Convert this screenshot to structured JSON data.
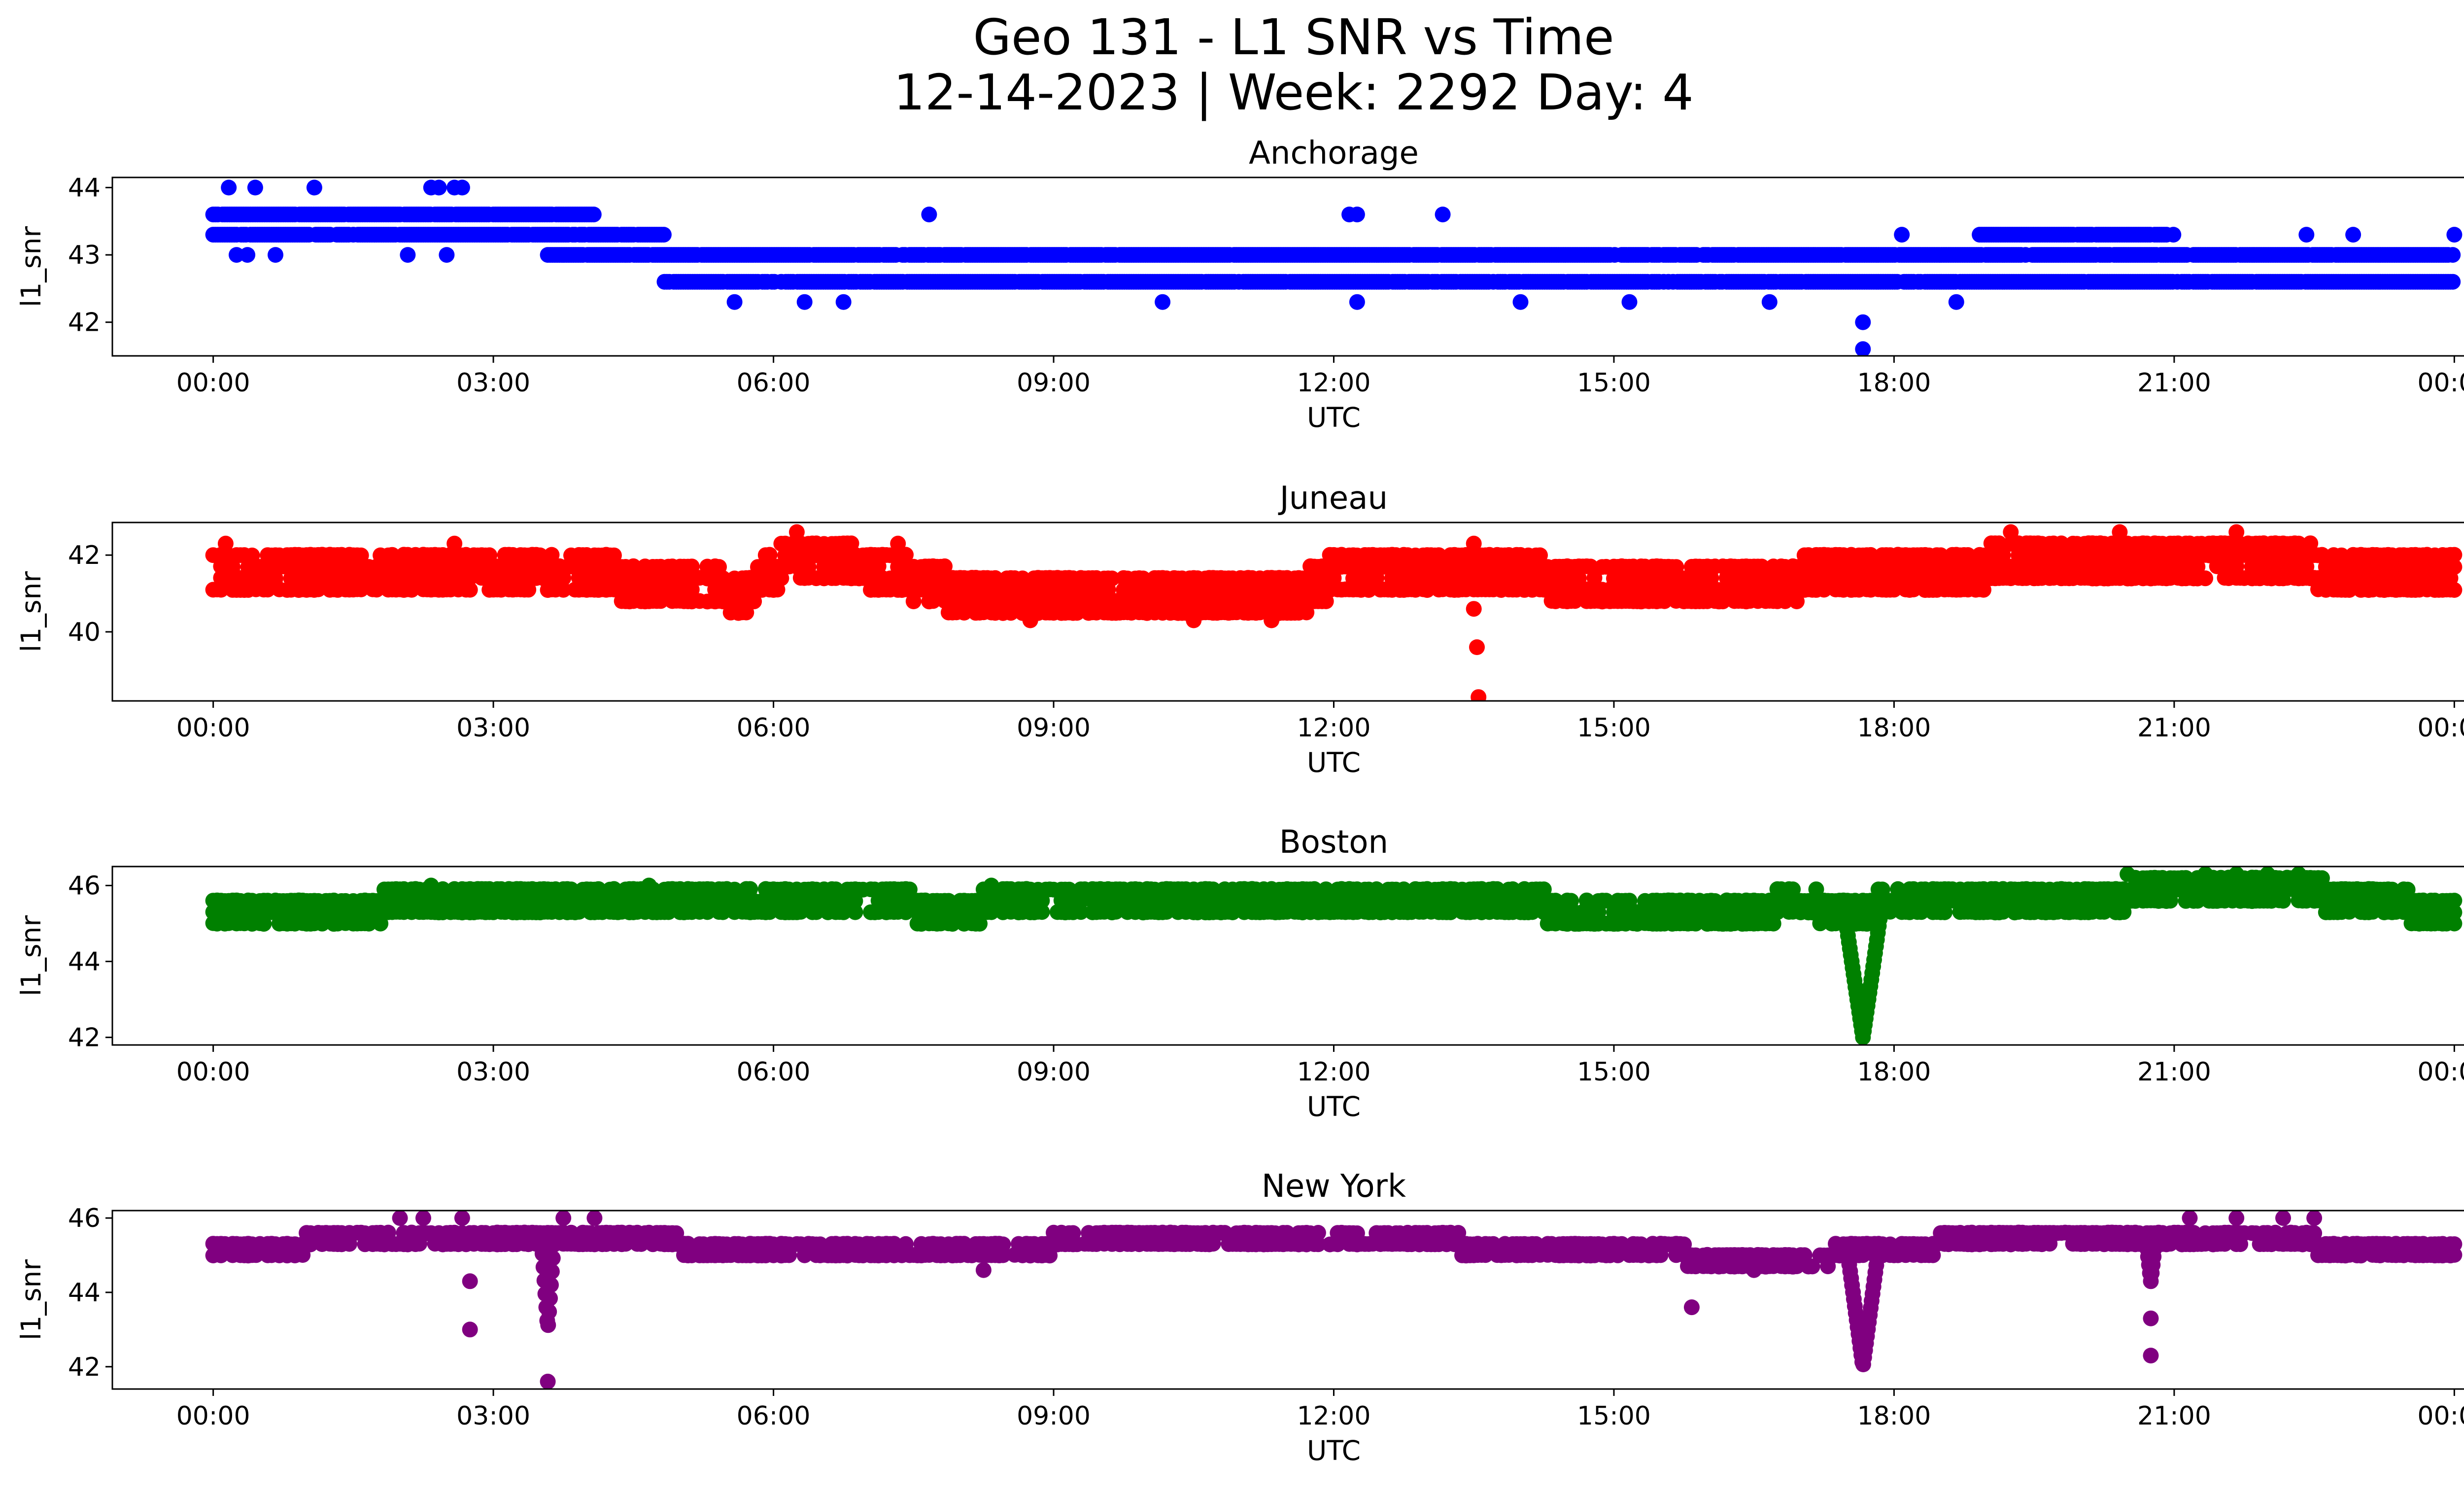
{
  "figure": {
    "title_line1": "Geo 131 - L1 SNR vs Time",
    "title_line2": "12-14-2023 | Week: 2292 Day: 4"
  },
  "chart_data": [
    {
      "type": "scatter",
      "title": "Anchorage",
      "xlabel": "UTC",
      "ylabel": "l1_snr",
      "color": "#0000ff",
      "xlim": [
        "00:00",
        "24:00"
      ],
      "ylim": [
        41.5,
        44.15
      ],
      "x_ticks": [
        "00:00",
        "03:00",
        "06:00",
        "09:00",
        "12:00",
        "15:00",
        "18:00",
        "21:00",
        "00:00"
      ],
      "y_ticks": [
        42,
        43,
        44
      ],
      "levels": [
        {
          "y": 43.6,
          "from": "00:00",
          "to": "04:05"
        },
        {
          "y": 43.3,
          "from": "00:00",
          "to": "04:50"
        },
        {
          "y": 43.3,
          "from": "18:55",
          "to": "21:00"
        },
        {
          "y": 43.0,
          "from": "03:35",
          "to": "24:00"
        },
        {
          "y": 42.6,
          "from": "04:50",
          "to": "24:00"
        }
      ],
      "outliers": [
        {
          "t": "00:10",
          "y": 44.0
        },
        {
          "t": "00:27",
          "y": 44.0
        },
        {
          "t": "01:05",
          "y": 44.0
        },
        {
          "t": "02:20",
          "y": 44.0
        },
        {
          "t": "02:25",
          "y": 44.0
        },
        {
          "t": "02:35",
          "y": 44.0
        },
        {
          "t": "02:40",
          "y": 44.0
        },
        {
          "t": "00:15",
          "y": 43.0
        },
        {
          "t": "00:22",
          "y": 43.0
        },
        {
          "t": "00:40",
          "y": 43.0
        },
        {
          "t": "02:05",
          "y": 43.0
        },
        {
          "t": "02:30",
          "y": 43.0
        },
        {
          "t": "07:40",
          "y": 43.6
        },
        {
          "t": "12:10",
          "y": 43.6
        },
        {
          "t": "12:15",
          "y": 43.6
        },
        {
          "t": "13:10",
          "y": 43.6
        },
        {
          "t": "05:35",
          "y": 42.3
        },
        {
          "t": "06:20",
          "y": 42.3
        },
        {
          "t": "06:45",
          "y": 42.3
        },
        {
          "t": "10:10",
          "y": 42.3
        },
        {
          "t": "12:15",
          "y": 42.3
        },
        {
          "t": "14:00",
          "y": 42.3
        },
        {
          "t": "15:10",
          "y": 42.3
        },
        {
          "t": "16:40",
          "y": 42.3
        },
        {
          "t": "17:40",
          "y": 42.0
        },
        {
          "t": "17:40",
          "y": 41.6
        },
        {
          "t": "18:40",
          "y": 42.3
        },
        {
          "t": "18:05",
          "y": 43.3
        },
        {
          "t": "22:25",
          "y": 43.3
        },
        {
          "t": "22:55",
          "y": 43.3
        },
        {
          "t": "24:00",
          "y": 43.3
        }
      ]
    },
    {
      "type": "scatter",
      "title": "Juneau",
      "xlabel": "UTC",
      "ylabel": "l1_snr",
      "color": "#ff0000",
      "xlim": [
        "00:00",
        "24:00"
      ],
      "ylim": [
        38.2,
        42.85
      ],
      "x_ticks": [
        "00:00",
        "03:00",
        "06:00",
        "09:00",
        "12:00",
        "15:00",
        "18:00",
        "21:00",
        "00:00"
      ],
      "y_ticks": [
        40,
        42
      ],
      "band_profile": [
        {
          "t": "00:00",
          "y": 41.6
        },
        {
          "t": "01:30",
          "y": 41.5
        },
        {
          "t": "03:00",
          "y": 41.6
        },
        {
          "t": "05:00",
          "y": 41.3
        },
        {
          "t": "05:40",
          "y": 41.0
        },
        {
          "t": "06:15",
          "y": 42.0
        },
        {
          "t": "07:00",
          "y": 41.7
        },
        {
          "t": "08:00",
          "y": 41.0
        },
        {
          "t": "09:00",
          "y": 40.9
        },
        {
          "t": "10:30",
          "y": 40.9
        },
        {
          "t": "11:40",
          "y": 41.0
        },
        {
          "t": "12:00",
          "y": 41.5
        },
        {
          "t": "13:30",
          "y": 41.5
        },
        {
          "t": "15:00",
          "y": 41.3
        },
        {
          "t": "17:00",
          "y": 41.4
        },
        {
          "t": "18:30",
          "y": 41.6
        },
        {
          "t": "20:00",
          "y": 41.9
        },
        {
          "t": "21:30",
          "y": 41.9
        },
        {
          "t": "23:00",
          "y": 41.6
        },
        {
          "t": "24:00",
          "y": 41.6
        }
      ],
      "band_half_width": 0.45,
      "outliers": [
        {
          "t": "00:08",
          "y": 42.3
        },
        {
          "t": "02:35",
          "y": 42.3
        },
        {
          "t": "06:15",
          "y": 42.6
        },
        {
          "t": "07:20",
          "y": 42.3
        },
        {
          "t": "13:30",
          "y": 42.3
        },
        {
          "t": "19:15",
          "y": 42.6
        },
        {
          "t": "20:25",
          "y": 42.6
        },
        {
          "t": "21:40",
          "y": 42.6
        },
        {
          "t": "13:30",
          "y": 40.6
        },
        {
          "t": "13:32",
          "y": 39.6
        },
        {
          "t": "13:33",
          "y": 38.3
        },
        {
          "t": "08:45",
          "y": 40.3
        },
        {
          "t": "10:30",
          "y": 40.3
        },
        {
          "t": "11:20",
          "y": 40.3
        }
      ]
    },
    {
      "type": "scatter",
      "title": "Boston",
      "xlabel": "UTC",
      "ylabel": "l1_snr",
      "color": "#008000",
      "xlim": [
        "00:00",
        "24:00"
      ],
      "ylim": [
        41.8,
        46.5
      ],
      "x_ticks": [
        "00:00",
        "03:00",
        "06:00",
        "09:00",
        "12:00",
        "15:00",
        "18:00",
        "21:00",
        "00:00"
      ],
      "y_ticks": [
        42,
        44,
        46
      ],
      "band_profile": [
        {
          "t": "00:00",
          "y": 45.2
        },
        {
          "t": "01:20",
          "y": 45.3
        },
        {
          "t": "02:00",
          "y": 45.5
        },
        {
          "t": "07:00",
          "y": 45.5
        },
        {
          "t": "08:00",
          "y": 45.4
        },
        {
          "t": "09:00",
          "y": 45.6
        },
        {
          "t": "12:00",
          "y": 45.6
        },
        {
          "t": "13:30",
          "y": 45.5
        },
        {
          "t": "15:00",
          "y": 45.4
        },
        {
          "t": "16:00",
          "y": 45.3
        },
        {
          "t": "17:00",
          "y": 45.5
        },
        {
          "t": "17:40",
          "y": 45.3
        },
        {
          "t": "18:00",
          "y": 45.6
        },
        {
          "t": "20:00",
          "y": 45.7
        },
        {
          "t": "21:00",
          "y": 45.8
        },
        {
          "t": "22:30",
          "y": 45.8
        },
        {
          "t": "23:00",
          "y": 45.5
        },
        {
          "t": "24:00",
          "y": 45.4
        }
      ],
      "band_half_width": 0.3,
      "dips": [
        {
          "center": "17:40",
          "half_width_min": 12,
          "min": 42.0
        }
      ],
      "outliers": [
        {
          "t": "02:20",
          "y": 46.0
        },
        {
          "t": "04:40",
          "y": 46.0
        },
        {
          "t": "08:20",
          "y": 46.0
        },
        {
          "t": "20:30",
          "y": 46.3
        },
        {
          "t": "21:20",
          "y": 46.3
        },
        {
          "t": "21:40",
          "y": 46.3
        },
        {
          "t": "22:00",
          "y": 46.3
        },
        {
          "t": "22:20",
          "y": 46.3
        }
      ]
    },
    {
      "type": "scatter",
      "title": "New York",
      "xlabel": "UTC",
      "ylabel": "l1_snr",
      "color": "#800080",
      "xlim": [
        "00:00",
        "24:00"
      ],
      "ylim": [
        41.4,
        46.2
      ],
      "x_ticks": [
        "00:00",
        "03:00",
        "06:00",
        "09:00",
        "12:00",
        "15:00",
        "18:00",
        "21:00",
        "00:00"
      ],
      "y_ticks": [
        42,
        44,
        46
      ],
      "band_profile": [
        {
          "t": "00:00",
          "y": 45.3
        },
        {
          "t": "00:40",
          "y": 45.3
        },
        {
          "t": "01:00",
          "y": 45.4
        },
        {
          "t": "05:00",
          "y": 45.4
        },
        {
          "t": "07:00",
          "y": 45.3
        },
        {
          "t": "08:00",
          "y": 45.2
        },
        {
          "t": "09:00",
          "y": 45.4
        },
        {
          "t": "13:20",
          "y": 45.4
        },
        {
          "t": "13:40",
          "y": 45.2
        },
        {
          "t": "15:30",
          "y": 45.2
        },
        {
          "t": "16:00",
          "y": 45.0
        },
        {
          "t": "17:20",
          "y": 45.1
        },
        {
          "t": "18:00",
          "y": 45.2
        },
        {
          "t": "18:30",
          "y": 45.4
        },
        {
          "t": "21:00",
          "y": 45.4
        },
        {
          "t": "22:30",
          "y": 45.4
        },
        {
          "t": "23:00",
          "y": 45.2
        },
        {
          "t": "24:00",
          "y": 45.2
        }
      ],
      "band_half_width": 0.25,
      "dips": [
        {
          "center": "17:40",
          "half_width_min": 10,
          "min": 42.0
        },
        {
          "center": "03:35",
          "half_width_min": 4,
          "min": 43.0
        },
        {
          "center": "20:45",
          "half_width_min": 3,
          "min": 44.3
        }
      ],
      "outliers": [
        {
          "t": "02:00",
          "y": 46.0
        },
        {
          "t": "02:15",
          "y": 46.0
        },
        {
          "t": "02:40",
          "y": 46.0
        },
        {
          "t": "03:45",
          "y": 46.0
        },
        {
          "t": "04:05",
          "y": 46.0
        },
        {
          "t": "21:10",
          "y": 46.0
        },
        {
          "t": "21:40",
          "y": 46.0
        },
        {
          "t": "22:10",
          "y": 46.0
        },
        {
          "t": "22:30",
          "y": 46.0
        },
        {
          "t": "02:45",
          "y": 44.3
        },
        {
          "t": "02:45",
          "y": 43.0
        },
        {
          "t": "03:35",
          "y": 41.6
        },
        {
          "t": "08:15",
          "y": 44.6
        },
        {
          "t": "15:50",
          "y": 43.6
        },
        {
          "t": "16:30",
          "y": 44.6
        },
        {
          "t": "20:45",
          "y": 43.3
        },
        {
          "t": "20:45",
          "y": 42.3
        }
      ]
    }
  ]
}
